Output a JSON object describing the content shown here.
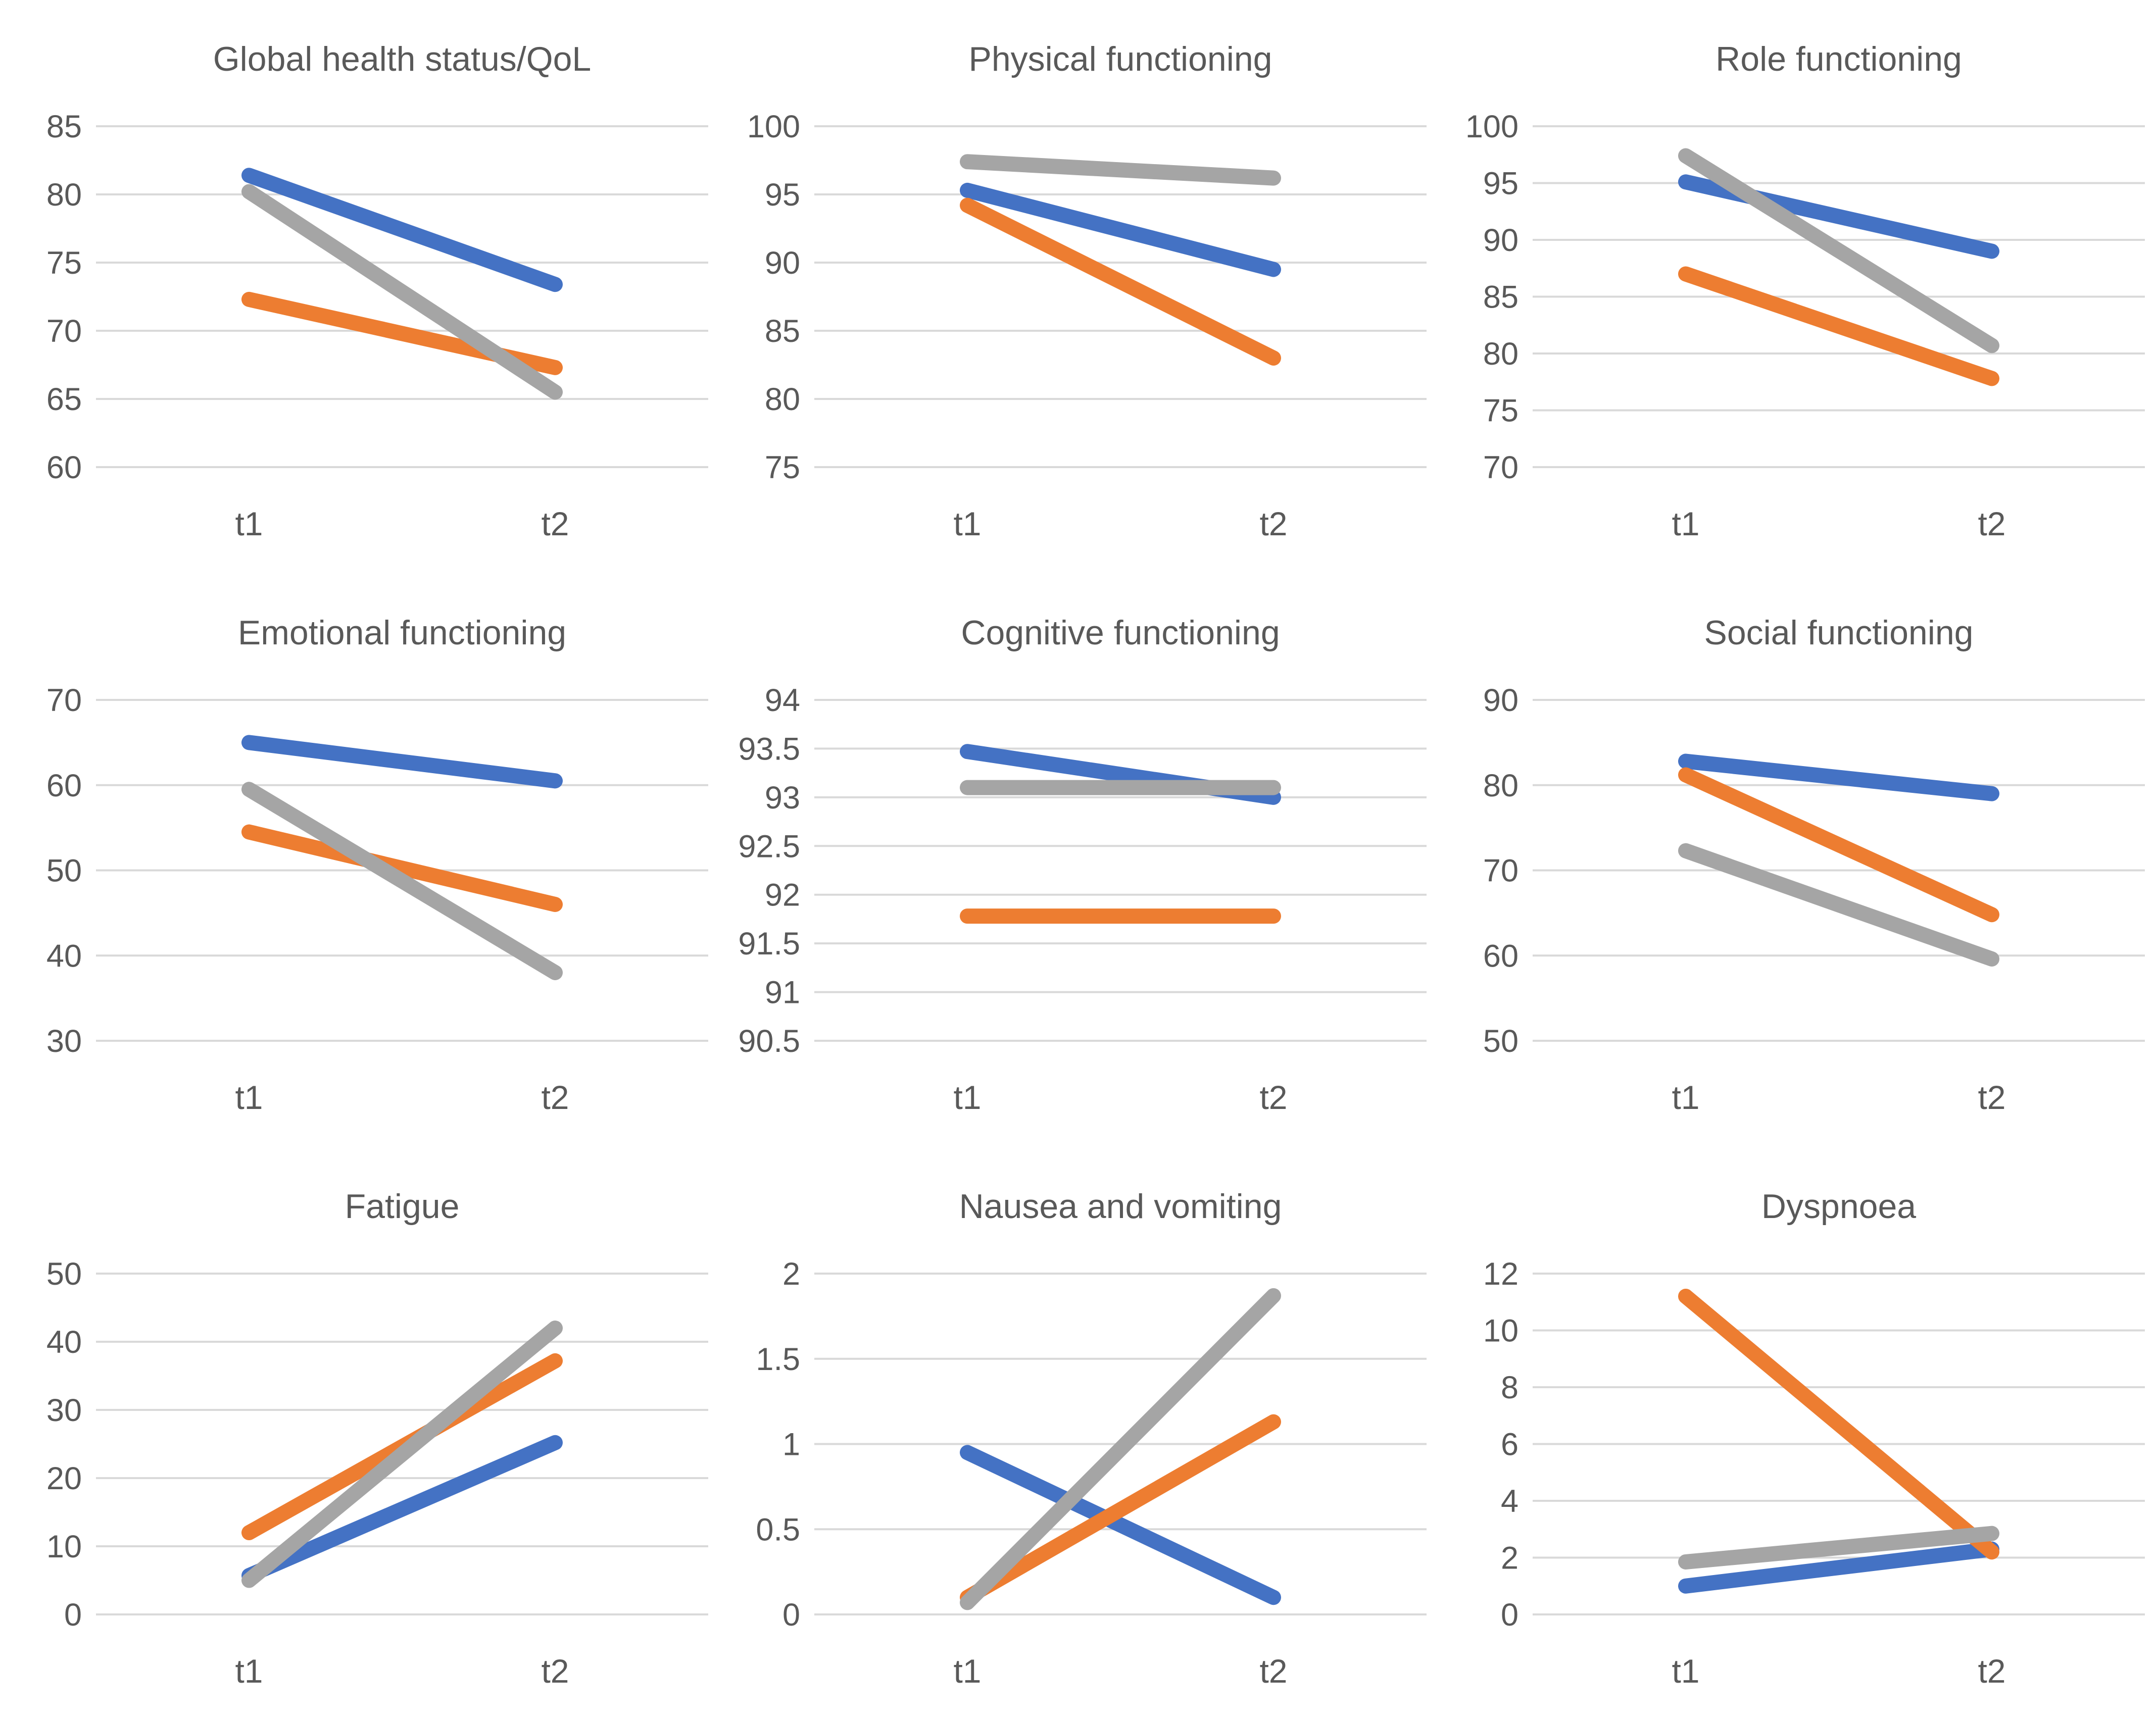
{
  "palette": {
    "blue": "#4472C4",
    "orange": "#ED7D31",
    "gray": "#A5A5A5",
    "gridline": "#D9D9D9",
    "text": "#595959",
    "background": "#FFFFFF"
  },
  "layout_hints": {
    "grid": "3x3",
    "legend": "none",
    "grid_lines": "horizontal-only",
    "x_categories": [
      "t1",
      "t2"
    ]
  },
  "chart_data": [
    {
      "type": "line",
      "title": "Global health status/QoL",
      "categories": [
        "t1",
        "t2"
      ],
      "ymin": 60,
      "ymax": 85,
      "ystep": 5,
      "series": [
        {
          "name": "blue",
          "color": "#4472C4",
          "values": [
            81.4,
            73.4
          ]
        },
        {
          "name": "orange",
          "color": "#ED7D31",
          "values": [
            72.3,
            67.3
          ]
        },
        {
          "name": "gray",
          "color": "#A5A5A5",
          "values": [
            80.2,
            65.5
          ]
        }
      ]
    },
    {
      "type": "line",
      "title": "Physical functioning",
      "categories": [
        "t1",
        "t2"
      ],
      "ymin": 75,
      "ymax": 100,
      "ystep": 5,
      "series": [
        {
          "name": "blue",
          "color": "#4472C4",
          "values": [
            95.3,
            89.5
          ]
        },
        {
          "name": "orange",
          "color": "#ED7D31",
          "values": [
            94.2,
            83.0
          ]
        },
        {
          "name": "gray",
          "color": "#A5A5A5",
          "values": [
            97.4,
            96.2
          ]
        }
      ]
    },
    {
      "type": "line",
      "title": "Role functioning",
      "categories": [
        "t1",
        "t2"
      ],
      "ymin": 70,
      "ymax": 100,
      "ystep": 5,
      "series": [
        {
          "name": "blue",
          "color": "#4472C4",
          "values": [
            95.1,
            89.0
          ]
        },
        {
          "name": "orange",
          "color": "#ED7D31",
          "values": [
            87.0,
            77.8
          ]
        },
        {
          "name": "gray",
          "color": "#A5A5A5",
          "values": [
            97.4,
            80.7
          ]
        }
      ]
    },
    {
      "type": "line",
      "title": "Emotional functioning",
      "categories": [
        "t1",
        "t2"
      ],
      "ymin": 30,
      "ymax": 70,
      "ystep": 10,
      "series": [
        {
          "name": "blue",
          "color": "#4472C4",
          "values": [
            65.0,
            60.5
          ]
        },
        {
          "name": "orange",
          "color": "#ED7D31",
          "values": [
            54.5,
            46.0
          ]
        },
        {
          "name": "gray",
          "color": "#A5A5A5",
          "values": [
            59.5,
            38.0
          ]
        }
      ]
    },
    {
      "type": "line",
      "title": "Cognitive functioning",
      "categories": [
        "t1",
        "t2"
      ],
      "ymin": 90.5,
      "ymax": 94,
      "ystep": 0.5,
      "series": [
        {
          "name": "blue",
          "color": "#4472C4",
          "values": [
            93.47,
            93.0
          ]
        },
        {
          "name": "orange",
          "color": "#ED7D31",
          "values": [
            91.78,
            91.78
          ]
        },
        {
          "name": "gray",
          "color": "#A5A5A5",
          "values": [
            93.1,
            93.1
          ]
        }
      ]
    },
    {
      "type": "line",
      "title": "Social functioning",
      "categories": [
        "t1",
        "t2"
      ],
      "ymin": 50,
      "ymax": 90,
      "ystep": 10,
      "series": [
        {
          "name": "blue",
          "color": "#4472C4",
          "values": [
            82.8,
            79.0
          ]
        },
        {
          "name": "orange",
          "color": "#ED7D31",
          "values": [
            81.2,
            64.8
          ]
        },
        {
          "name": "gray",
          "color": "#A5A5A5",
          "values": [
            72.3,
            59.6
          ]
        }
      ]
    },
    {
      "type": "line",
      "title": "Fatigue",
      "categories": [
        "t1",
        "t2"
      ],
      "ymin": 0,
      "ymax": 50,
      "ystep": 10,
      "series": [
        {
          "name": "blue",
          "color": "#4472C4",
          "values": [
            5.7,
            25.2
          ]
        },
        {
          "name": "orange",
          "color": "#ED7D31",
          "values": [
            12.0,
            37.2
          ]
        },
        {
          "name": "gray",
          "color": "#A5A5A5",
          "values": [
            5.0,
            42.0
          ]
        }
      ]
    },
    {
      "type": "line",
      "title": "Nausea and vomiting",
      "categories": [
        "t1",
        "t2"
      ],
      "ymin": 0,
      "ymax": 2,
      "ystep": 0.5,
      "series": [
        {
          "name": "blue",
          "color": "#4472C4",
          "values": [
            0.95,
            0.1
          ]
        },
        {
          "name": "orange",
          "color": "#ED7D31",
          "values": [
            0.1,
            1.13
          ]
        },
        {
          "name": "gray",
          "color": "#A5A5A5",
          "values": [
            0.07,
            1.87
          ]
        }
      ]
    },
    {
      "type": "line",
      "title": "Dyspnoea",
      "categories": [
        "t1",
        "t2"
      ],
      "ymin": 0,
      "ymax": 12,
      "ystep": 2,
      "series": [
        {
          "name": "blue",
          "color": "#4472C4",
          "values": [
            1.0,
            2.3
          ]
        },
        {
          "name": "orange",
          "color": "#ED7D31",
          "values": [
            11.2,
            2.2
          ]
        },
        {
          "name": "gray",
          "color": "#A5A5A5",
          "values": [
            1.85,
            2.85
          ]
        }
      ]
    }
  ]
}
